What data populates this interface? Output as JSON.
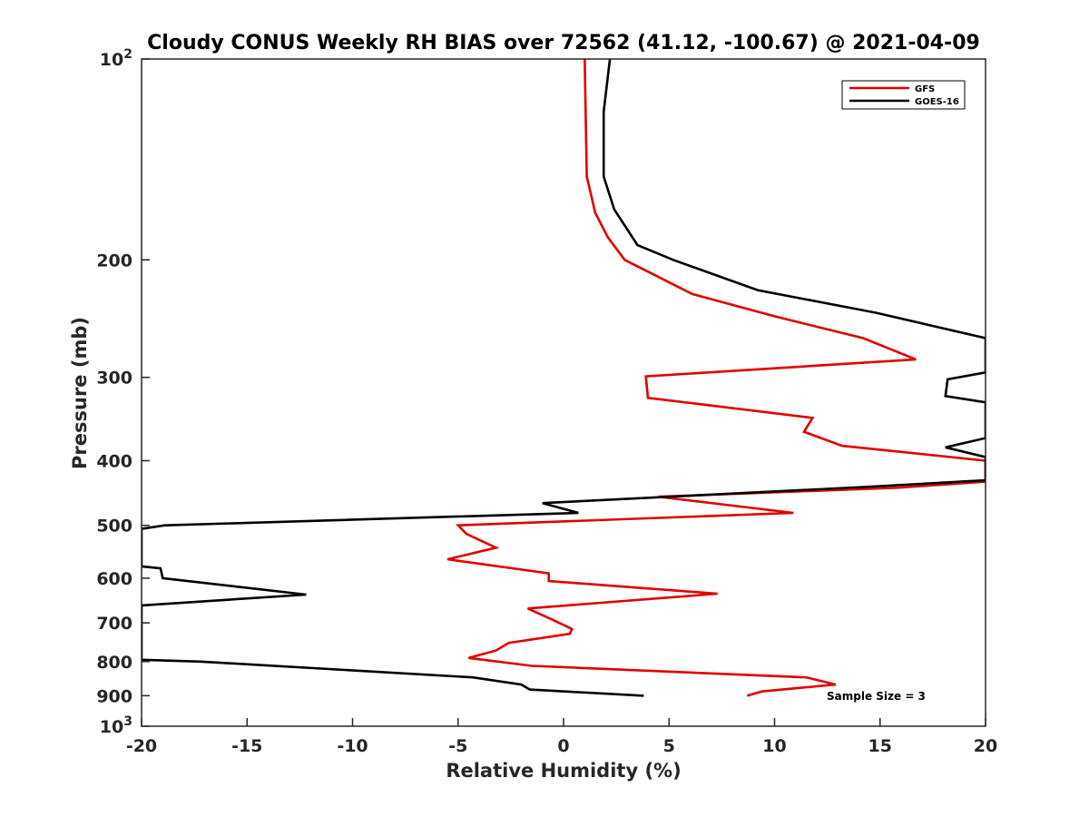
{
  "chart_data": {
    "type": "line",
    "title": "Cloudy CONUS Weekly RH BIAS over 72562 (41.12, -100.67) @ 2021-04-09",
    "xlabel": "Relative Humidity (%)",
    "ylabel": "Pressure (mb)",
    "xlim": [
      -20,
      20
    ],
    "ylim": [
      100,
      1000
    ],
    "yscale": "log",
    "y_reversed": true,
    "x_ticks": [
      "-20",
      "-15",
      "-10",
      "-5",
      "0",
      "5",
      "10",
      "15",
      "20"
    ],
    "y_ticks": [
      {
        "value": 100,
        "base": "10",
        "exp": "2"
      },
      {
        "value": 200,
        "label": "200"
      },
      {
        "value": 300,
        "label": "300"
      },
      {
        "value": 400,
        "label": "400"
      },
      {
        "value": 500,
        "label": "500"
      },
      {
        "value": 600,
        "label": "600"
      },
      {
        "value": 700,
        "label": "700"
      },
      {
        "value": 800,
        "label": "800"
      },
      {
        "value": 900,
        "label": "900"
      },
      {
        "value": 1000,
        "base": "10",
        "exp": "3"
      }
    ],
    "grid": false,
    "legend_position": "top-right",
    "annotation": "Sample Size = 3",
    "series": [
      {
        "name": "GFS",
        "color": "#e00000",
        "points": [
          [
            1.0,
            100
          ],
          [
            1.1,
            150
          ],
          [
            1.5,
            170
          ],
          [
            2.1,
            185
          ],
          [
            2.9,
            200
          ],
          [
            6.1,
            225
          ],
          [
            10.0,
            243
          ],
          [
            14.2,
            262
          ],
          [
            16.7,
            282
          ],
          [
            3.9,
            299
          ],
          [
            4.0,
            322
          ],
          [
            11.8,
            345
          ],
          [
            11.4,
            362
          ],
          [
            13.2,
            380
          ],
          [
            20.0,
            400
          ],
          [
            20.0,
            430
          ],
          [
            15.9,
            439
          ],
          [
            4.5,
            453
          ],
          [
            10.9,
            479
          ],
          [
            -5.0,
            500
          ],
          [
            -4.6,
            515
          ],
          [
            -3.2,
            540
          ],
          [
            -5.5,
            562
          ],
          [
            -0.7,
            590
          ],
          [
            -0.7,
            606
          ],
          [
            7.3,
            633
          ],
          [
            -1.7,
            666
          ],
          [
            -0.5,
            693
          ],
          [
            0.4,
            715
          ],
          [
            0.3,
            727
          ],
          [
            -2.6,
            750
          ],
          [
            -3.2,
            770
          ],
          [
            -4.5,
            790
          ],
          [
            -1.5,
            812
          ],
          [
            11.5,
            845
          ],
          [
            12.9,
            866
          ],
          [
            9.4,
            887
          ],
          [
            8.7,
            900
          ]
        ]
      },
      {
        "name": "GOES-16",
        "color": "#000000",
        "points": [
          [
            2.2,
            100
          ],
          [
            1.9,
            120
          ],
          [
            1.9,
            150
          ],
          [
            2.4,
            168
          ],
          [
            3.5,
            190
          ],
          [
            5.2,
            200
          ],
          [
            9.2,
            222
          ],
          [
            14.8,
            240
          ],
          [
            20.0,
            262
          ],
          [
            20.0,
            295
          ],
          [
            18.2,
            302
          ],
          [
            18.1,
            320
          ],
          [
            20.0,
            327
          ],
          [
            20.0,
            370
          ],
          [
            18.1,
            382
          ],
          [
            20.0,
            395
          ],
          [
            20.0,
            428
          ],
          [
            14.2,
            438
          ],
          [
            -1.0,
            463
          ],
          [
            0.7,
            479
          ],
          [
            -18.9,
            500
          ],
          [
            -20.0,
            506
          ],
          [
            -20.0,
            576
          ],
          [
            -19.1,
            580
          ],
          [
            -19.0,
            600
          ],
          [
            -15.6,
            617
          ],
          [
            -12.2,
            635
          ],
          [
            -20.0,
            659
          ],
          [
            -20.0,
            795
          ],
          [
            -17.2,
            800
          ],
          [
            -4.3,
            845
          ],
          [
            -2.0,
            866
          ],
          [
            -1.6,
            881
          ],
          [
            3.8,
            900
          ]
        ]
      }
    ]
  }
}
